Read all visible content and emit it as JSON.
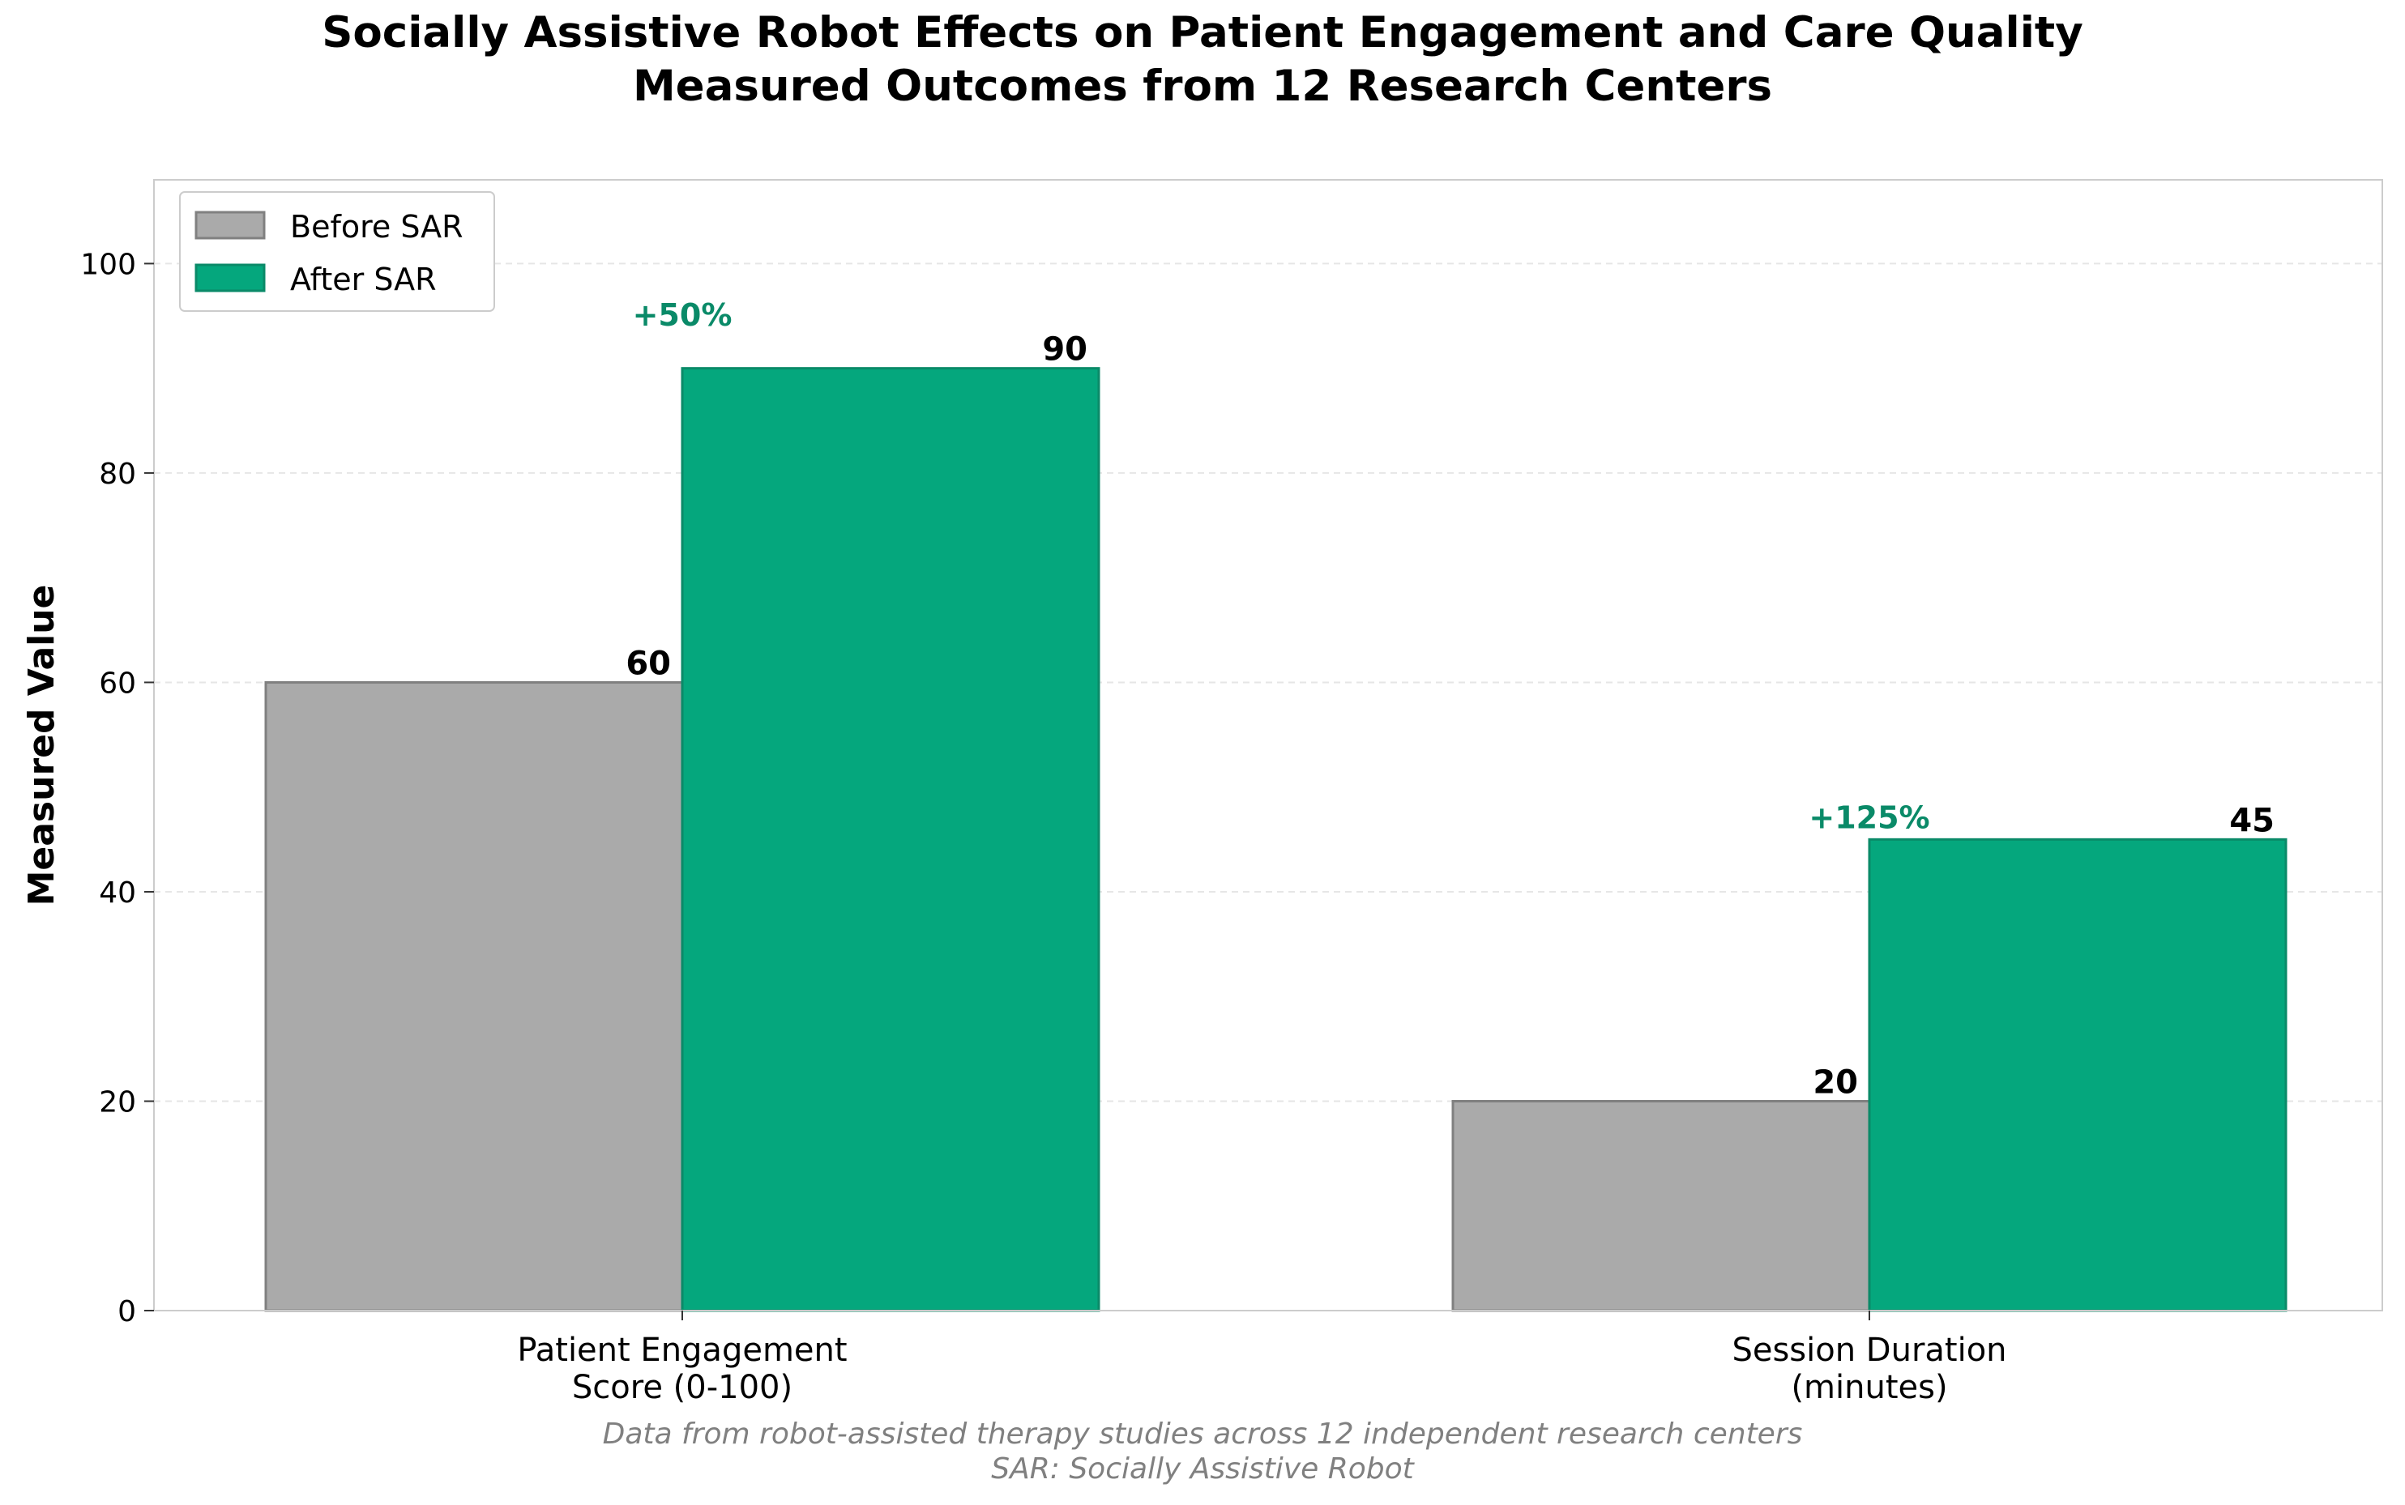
{
  "chart_data": {
    "type": "bar",
    "title": "Socially Assistive Robot Effects on Patient Engagement and Care Quality",
    "subtitle": "Measured Outcomes from 12 Research Centers",
    "xlabel": "",
    "ylabel": "Measured Value",
    "ylim": [
      0,
      108
    ],
    "yticks": [
      0,
      20,
      40,
      60,
      80,
      100
    ],
    "grid": true,
    "legend_position": "top-left",
    "categories": [
      [
        "Patient Engagement",
        "Score (0-100)"
      ],
      [
        "Session Duration",
        "(minutes)"
      ]
    ],
    "series": [
      {
        "name": "Before SAR",
        "color": "#aaaaaa",
        "edge": "#808080",
        "values": [
          60,
          20
        ]
      },
      {
        "name": "After SAR",
        "color": "#05a77d",
        "edge": "#0a8a68",
        "values": [
          90,
          45
        ]
      }
    ],
    "annotations": [
      {
        "category": 0,
        "text": "+50%",
        "y": 95,
        "color": "#0a8a68"
      },
      {
        "category": 1,
        "text": "+125%",
        "y": 47,
        "color": "#0a8a68"
      }
    ],
    "footnotes": [
      "Data from robot-assisted therapy studies across 12 independent research centers",
      "SAR: Socially Assistive Robot"
    ]
  }
}
